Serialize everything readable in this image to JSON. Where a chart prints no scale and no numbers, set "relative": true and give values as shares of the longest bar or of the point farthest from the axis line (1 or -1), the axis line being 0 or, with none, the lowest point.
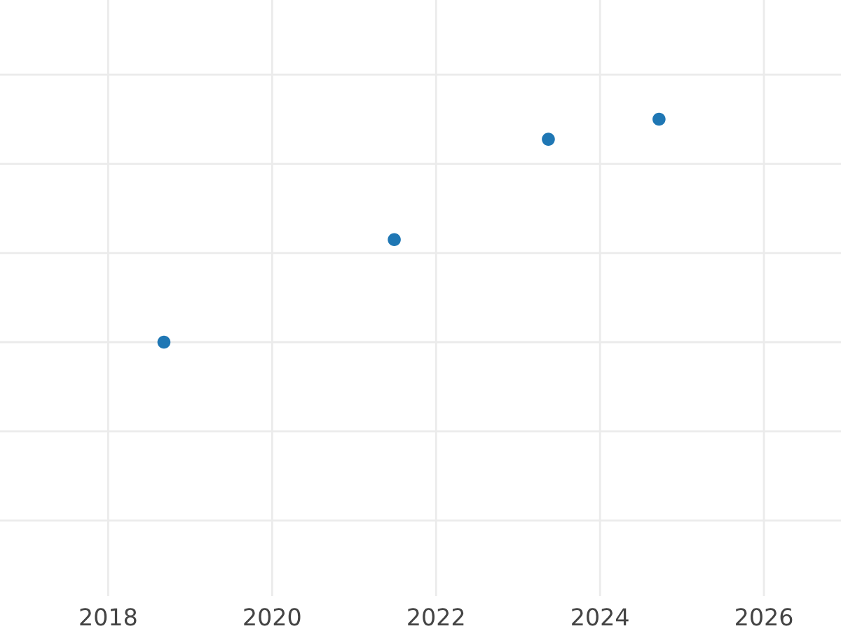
{
  "chart_data": {
    "type": "scatter",
    "relative": true,
    "x": [
      2018.68,
      2021.49,
      2023.37,
      2024.72
    ],
    "series": [
      {
        "color": "#1f77b4",
        "values": [
          0,
          0.46,
          0.91,
          1
        ]
      }
    ],
    "xlim": [
      2016.68,
      2026.94
    ],
    "xticks": [
      2018,
      2020,
      2022,
      2024,
      2026
    ],
    "grid": true,
    "marker": "circle"
  }
}
